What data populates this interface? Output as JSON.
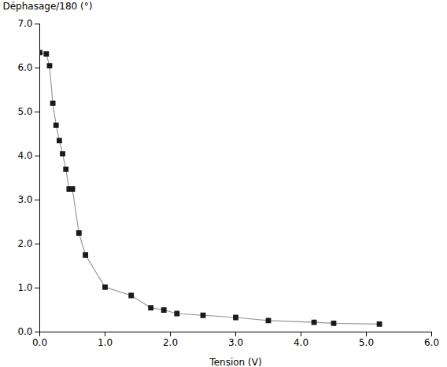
{
  "chart_data": {
    "type": "line",
    "x": [
      0.0,
      0.1,
      0.15,
      0.2,
      0.25,
      0.3,
      0.35,
      0.4,
      0.45,
      0.5,
      0.6,
      0.7,
      1.0,
      1.4,
      1.7,
      1.9,
      2.1,
      2.5,
      3.0,
      3.5,
      4.2,
      4.5,
      5.2
    ],
    "values": [
      6.35,
      6.32,
      6.05,
      5.2,
      4.7,
      4.35,
      4.05,
      3.7,
      3.25,
      3.25,
      2.25,
      1.75,
      1.02,
      0.83,
      0.55,
      0.5,
      0.42,
      0.38,
      0.33,
      0.26,
      0.22,
      0.2,
      0.18
    ],
    "xlabel": "Tension (V)",
    "ylabel": "Déphasage/180 (°)",
    "xlim": [
      0,
      6
    ],
    "ylim": [
      0,
      7
    ],
    "xticks": [
      0,
      1,
      2,
      3,
      4,
      5,
      6
    ],
    "yticks": [
      0,
      1,
      2,
      3,
      4,
      5,
      6,
      7
    ],
    "color": "#1a1a1a",
    "marker": "square",
    "grid": false
  }
}
